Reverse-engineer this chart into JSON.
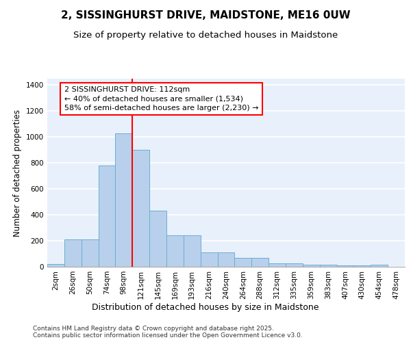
{
  "title": "2, SISSINGHURST DRIVE, MAIDSTONE, ME16 0UW",
  "subtitle": "Size of property relative to detached houses in Maidstone",
  "xlabel": "Distribution of detached houses by size in Maidstone",
  "ylabel": "Number of detached properties",
  "categories": [
    "2sqm",
    "26sqm",
    "50sqm",
    "74sqm",
    "98sqm",
    "121sqm",
    "145sqm",
    "169sqm",
    "193sqm",
    "216sqm",
    "240sqm",
    "264sqm",
    "288sqm",
    "312sqm",
    "335sqm",
    "359sqm",
    "383sqm",
    "407sqm",
    "430sqm",
    "454sqm",
    "478sqm"
  ],
  "values": [
    20,
    210,
    210,
    780,
    1030,
    900,
    430,
    240,
    240,
    110,
    110,
    70,
    70,
    25,
    25,
    18,
    18,
    8,
    8,
    15,
    0
  ],
  "bar_color": "#b8d0eb",
  "bar_edge_color": "#6aadd5",
  "vline_x": 4.5,
  "vline_color": "red",
  "annotation_text": "2 SISSINGHURST DRIVE: 112sqm\n← 40% of detached houses are smaller (1,534)\n58% of semi-detached houses are larger (2,230) →",
  "annotation_box_color": "white",
  "annotation_box_edge": "red",
  "ylim": [
    0,
    1450
  ],
  "yticks": [
    0,
    200,
    400,
    600,
    800,
    1000,
    1200,
    1400
  ],
  "bg_color": "#e8f0fb",
  "grid_color": "white",
  "footer": "Contains HM Land Registry data © Crown copyright and database right 2025.\nContains public sector information licensed under the Open Government Licence v3.0.",
  "title_fontsize": 11,
  "subtitle_fontsize": 9.5,
  "xlabel_fontsize": 9,
  "ylabel_fontsize": 8.5,
  "tick_fontsize": 7.5,
  "annotation_fontsize": 8,
  "footer_fontsize": 6.5
}
